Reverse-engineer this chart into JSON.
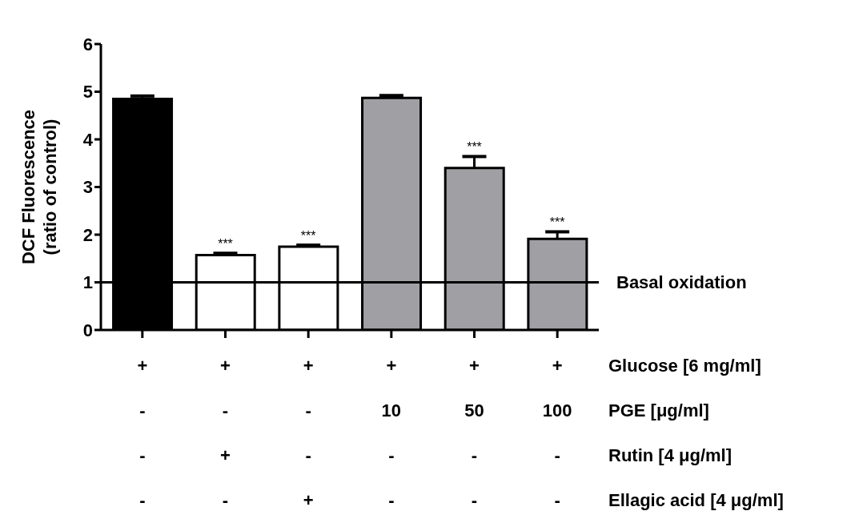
{
  "chart_data": {
    "type": "bar",
    "ylabel": "DCF Fluorescence\n(ratio of control)",
    "categories": [
      "+\n-\n-\n-",
      "+\n-\n+\n-",
      "+\n-\n-\n+",
      "+\n10\n-\n-",
      "+\n50\n-\n-",
      "+\n100\n-\n-"
    ],
    "values": [
      4.85,
      1.57,
      1.75,
      4.87,
      3.4,
      1.91
    ],
    "errors": [
      0.06,
      0.04,
      0.03,
      0.05,
      0.24,
      0.15
    ],
    "colors": [
      "#000000",
      "#ffffff",
      "#ffffff",
      "#a0a0a4",
      "#a0a0a4",
      "#a0a0a4"
    ],
    "ylim": [
      0,
      6
    ],
    "yticks": [
      0,
      1,
      2,
      3,
      4,
      5,
      6
    ],
    "grid": false,
    "legend": false,
    "ref_lines": [
      {
        "axis": "y",
        "value": 1,
        "label": "Basal oxidation",
        "color": "#000000"
      }
    ],
    "annotations": [
      "Glucose [6 mg/ml]",
      "PGE [μg/ml]",
      "Rutin [4 μg/ml]",
      "Ellagic acid [4 μg/ml]",
      {
        "text": "***",
        "x": "+\n-\n+\n-",
        "y": 1.61
      },
      {
        "text": "***",
        "x": "+\n-\n-\n+",
        "y": 1.78
      },
      {
        "text": "***",
        "x": "+\n50\n-\n-",
        "y": 3.64
      },
      {
        "text": "***",
        "x": "+\n100\n-\n-",
        "y": 2.06
      }
    ]
  }
}
